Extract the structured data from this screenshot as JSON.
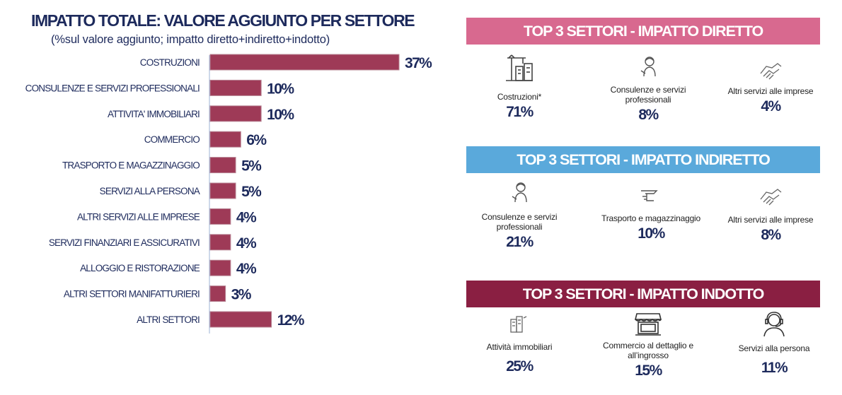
{
  "chart": {
    "title": "IMPATTO TOTALE: VALORE AGGIUNTO PER SETTORE",
    "subtitle": "(%sul valore aggiunto; impatto diretto+indiretto+indotto)"
  },
  "chart_data": {
    "type": "bar",
    "orientation": "horizontal",
    "title": "IMPATTO TOTALE: VALORE AGGIUNTO PER SETTORE",
    "subtitle": "(%sul valore aggiunto; impatto diretto+indiretto+indotto)",
    "categories": [
      "COSTRUZIONI",
      "CONSULENZE E SERVIZI PROFESSIONALI",
      "ATTIVITA' IMMOBILIARI",
      "COMMERCIO",
      "TRASPORTO E MAGAZZINAGGIO",
      "SERVIZI ALLA PERSONA",
      "ALTRI SERVIZI ALLE IMPRESE",
      "SERVIZI FINANZIARI E ASSICURATIVI",
      "ALLOGGIO E RISTORAZIONE",
      "ALTRI SETTORI MANIFATTURIERI",
      "ALTRI SETTORI"
    ],
    "values": [
      37,
      10,
      10,
      6,
      5,
      5,
      4,
      4,
      4,
      3,
      12
    ],
    "value_labels": [
      "37%",
      "10%",
      "10%",
      "6%",
      "5%",
      "5%",
      "4%",
      "4%",
      "4%",
      "3%",
      "12%"
    ],
    "unit": "%",
    "xlim": [
      0,
      37
    ],
    "grid": false,
    "legend": "none",
    "bar_color": "#9e3a57"
  },
  "panels": [
    {
      "id": "diretto",
      "title": "TOP 3 SETTORI  -  IMPATTO DIRETTO",
      "color": "#d8698f",
      "items": [
        {
          "icon": "construction-icon",
          "label": "Costruzioni*",
          "value": "71%"
        },
        {
          "icon": "consultant-icon",
          "label": "Consulenze e servizi professionali",
          "value": "8%"
        },
        {
          "icon": "handshake-icon",
          "label": "Altri servizi alle imprese",
          "value": "4%"
        }
      ]
    },
    {
      "id": "indiretto",
      "title": "TOP 3 SETTORI  -  IMPATTO INDIRETTO",
      "color": "#5aa9db",
      "items": [
        {
          "icon": "consultant-icon",
          "label": "Consulenze e servizi professionali",
          "value": "21%"
        },
        {
          "icon": "truck-icon",
          "label": "Trasporto e magazzinaggio",
          "value": "10%"
        },
        {
          "icon": "handshake-icon",
          "label": "Altri servizi alle imprese",
          "value": "8%"
        }
      ]
    },
    {
      "id": "indotto",
      "title": "TOP 3 SETTORI  -  IMPATTO INDOTTO",
      "color": "#8a1f42",
      "items": [
        {
          "icon": "buildings-icon",
          "label": "Attività immobiliari",
          "value": "25%"
        },
        {
          "icon": "shop-icon",
          "label": "Commercio al dettaglio e all’ingrosso",
          "value": "15%"
        },
        {
          "icon": "headset-person-icon",
          "label": "Servizi alla persona",
          "value": "11%"
        }
      ]
    }
  ]
}
